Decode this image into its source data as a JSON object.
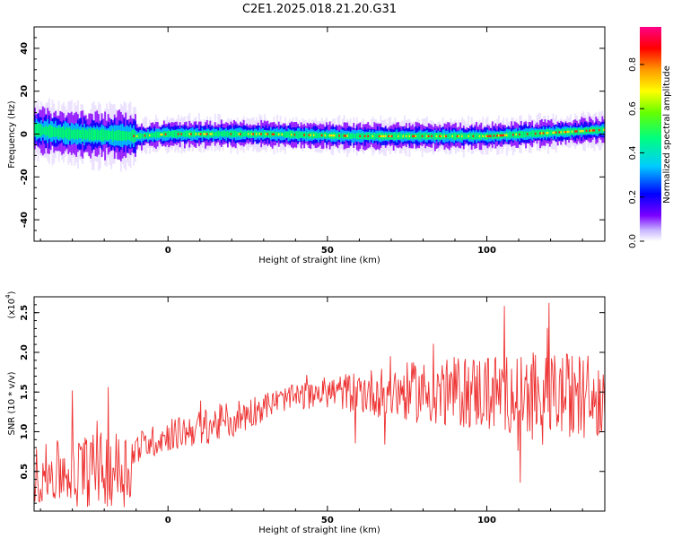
{
  "title": "C2E1.2025.018.21.20.G31",
  "chart_data": [
    {
      "type": "heatmap",
      "xlabel": "Height of straight line (km)",
      "ylabel": "Frequency (Hz)",
      "xlim": [
        -42,
        137
      ],
      "ylim": [
        -50,
        50
      ],
      "x_ticks": [
        0,
        50,
        100
      ],
      "y_ticks": [
        -40,
        -20,
        0,
        20,
        40
      ],
      "colorbar": {
        "label": "Normalized spectral amplitude",
        "range": [
          0,
          0.97
        ],
        "ticks": [
          0.0,
          0.2,
          0.4,
          0.6,
          0.8
        ],
        "colors": [
          "#ffffff",
          "#b89cff",
          "#6a00ff",
          "#0000ff",
          "#00d0ff",
          "#00ff60",
          "#ffff00",
          "#ff9900",
          "#ff0000",
          "#ff00aa"
        ]
      },
      "ridge": {
        "description_values": [
          {
            "x": -42,
            "y": 2
          },
          {
            "x": -30,
            "y": 0
          },
          {
            "x": -10,
            "y": -1
          },
          {
            "x": 0,
            "y": 0
          },
          {
            "x": 30,
            "y": 0
          },
          {
            "x": 60,
            "y": -1
          },
          {
            "x": 100,
            "y": -1
          },
          {
            "x": 137,
            "y": 2
          }
        ]
      }
    },
    {
      "type": "line",
      "xlabel": "Height of straight line (km)",
      "ylabel": "SNR (10 * v/v)",
      "y_multiplier": "(x10",
      "y_multiplier_exp": "4",
      "xlim": [
        -42,
        137
      ],
      "ylim": [
        0,
        2.7
      ],
      "x_ticks": [
        0,
        50,
        100
      ],
      "y_ticks": [
        0.5,
        1.0,
        1.5,
        2.0,
        2.5
      ],
      "color": "#ee3333",
      "envelope": [
        {
          "x": -42,
          "mean": 0.45,
          "spread": 0.35
        },
        {
          "x": -30,
          "mean": 0.5,
          "spread": 0.45
        },
        {
          "x": -12,
          "mean": 0.55,
          "spread": 0.5
        },
        {
          "x": -10,
          "mean": 0.8,
          "spread": 0.2
        },
        {
          "x": 0,
          "mean": 0.95,
          "spread": 0.2
        },
        {
          "x": 20,
          "mean": 1.15,
          "spread": 0.25
        },
        {
          "x": 35,
          "mean": 1.4,
          "spread": 0.15
        },
        {
          "x": 50,
          "mean": 1.5,
          "spread": 0.2
        },
        {
          "x": 70,
          "mean": 1.5,
          "spread": 0.35
        },
        {
          "x": 100,
          "mean": 1.5,
          "spread": 0.5
        },
        {
          "x": 137,
          "mean": 1.45,
          "spread": 0.55
        }
      ]
    }
  ]
}
